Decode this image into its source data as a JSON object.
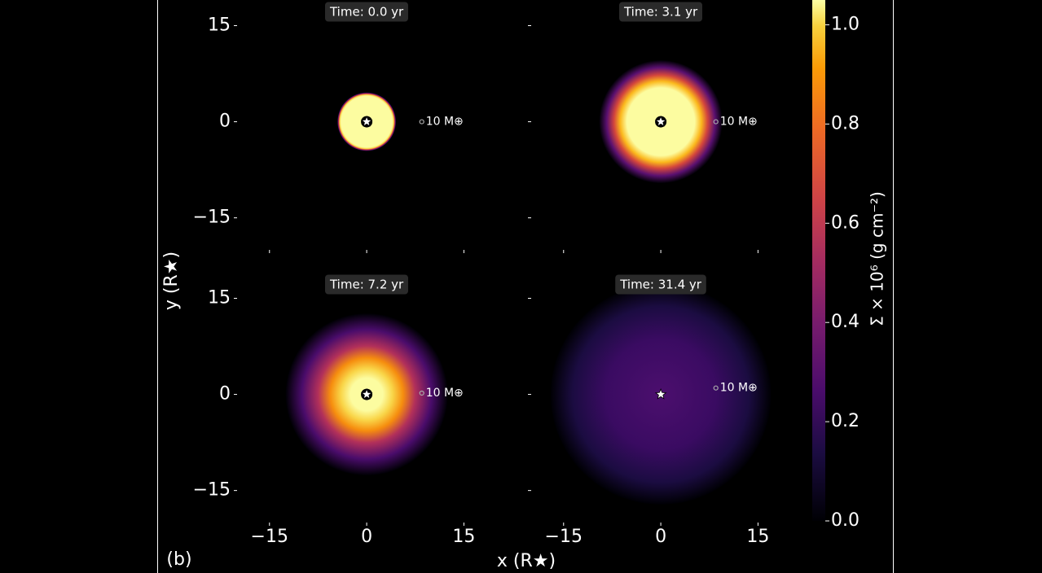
{
  "chart_data": [
    {
      "type": "image",
      "title": "Time: 0.0 yr",
      "xlim": [
        -20,
        24
      ],
      "ylim": [
        -20,
        19
      ],
      "xticks": [
        {
          "value": -15,
          "label": "−15"
        },
        0,
        15
      ],
      "yticks": [
        {
          "value": -15,
          "label": "−15"
        },
        0,
        15
      ],
      "star": {
        "x": 0,
        "y": 0
      },
      "planet": {
        "x": 8.5,
        "y": 0,
        "label": "10 M⊕"
      }
    },
    {
      "type": "image",
      "title": "Time: 3.1 yr",
      "xlim": [
        -20,
        24
      ],
      "ylim": [
        -20,
        19
      ],
      "xticks": [
        {
          "value": -15,
          "label": "−15"
        },
        0,
        15
      ],
      "yticks": [
        {
          "value": -15,
          "label": "−15"
        },
        0,
        15
      ],
      "star": {
        "x": 0,
        "y": 0
      },
      "planet": {
        "x": 8.5,
        "y": 0,
        "label": "10 M⊕"
      }
    },
    {
      "type": "image",
      "title": "Time: 7.2 yr",
      "xlim": [
        -20,
        24
      ],
      "ylim": [
        -20,
        19
      ],
      "xticks": [
        {
          "value": -15,
          "label": "−15"
        },
        0,
        15
      ],
      "yticks": [
        {
          "value": -15,
          "label": "−15"
        },
        0,
        15
      ],
      "star": {
        "x": 0,
        "y": 0
      },
      "planet": {
        "x": 8.5,
        "y": 0.2,
        "label": "10 M⊕"
      }
    },
    {
      "type": "image",
      "title": "Time: 31.4 yr",
      "xlim": [
        -20,
        24
      ],
      "ylim": [
        -20,
        19
      ],
      "xticks": [
        {
          "value": -15,
          "label": "−15"
        },
        0,
        15
      ],
      "yticks": [
        {
          "value": -15,
          "label": "−15"
        },
        0,
        15
      ],
      "star": {
        "x": 0,
        "y": 0
      },
      "planet": {
        "x": 8.5,
        "y": 1,
        "label": "10 M⊕"
      }
    }
  ],
  "figure": {
    "label": "(b)",
    "xlabel": "x (R★)",
    "ylabel": "y (R★)",
    "colorbar": {
      "label": "Σ × 10⁶ (g cm⁻²)",
      "lim": [
        0,
        1.05
      ],
      "ticks": [
        {
          "value": 0,
          "label": "0.0"
        },
        {
          "value": 0.2,
          "label": "0.2"
        },
        {
          "value": 0.4,
          "label": "0.4"
        },
        {
          "value": 0.6,
          "label": "0.6"
        },
        {
          "value": 0.8,
          "label": "0.8"
        },
        {
          "value": 1,
          "label": "1.0"
        }
      ]
    }
  }
}
